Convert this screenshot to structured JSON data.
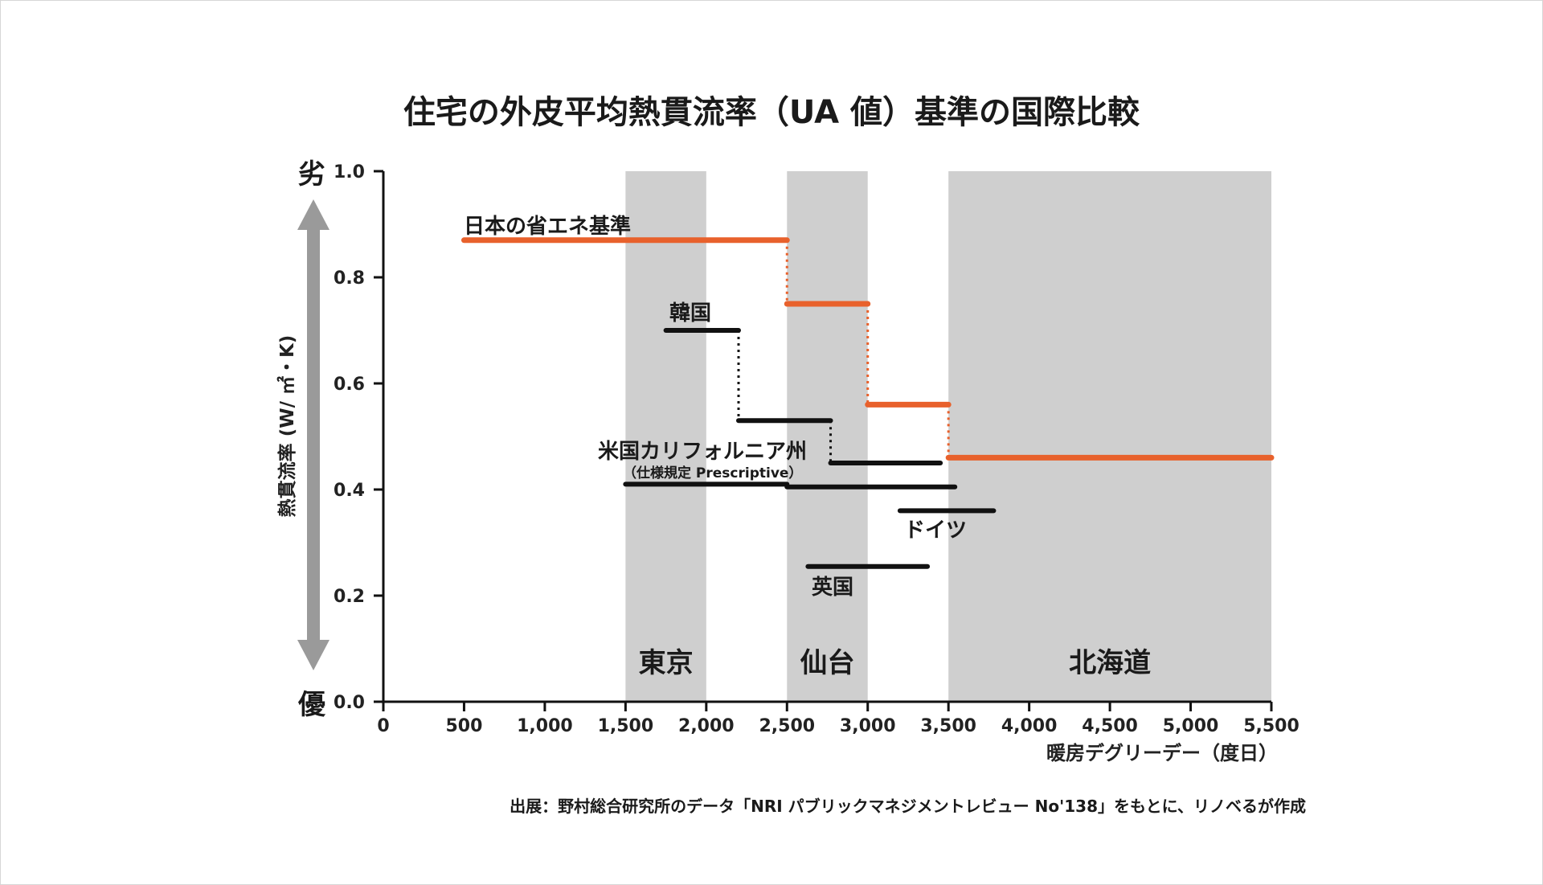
{
  "chart_data": {
    "type": "line",
    "title": "住宅の外皮平均熱貫流率（UA 値）基準の国際比較",
    "xlabel": "暖房デグリーデー（度日）",
    "ylabel": "熱貫流率 (W/ ㎡・K)",
    "xlim": [
      0,
      5500
    ],
    "ylim": [
      0,
      1.0
    ],
    "x_ticks": [
      "0",
      "500",
      "1,000",
      "1,500",
      "2,000",
      "2,500",
      "3,000",
      "3,500",
      "4,000",
      "4,500",
      "5,000",
      "5,500"
    ],
    "x_tick_values": [
      0,
      500,
      1000,
      1500,
      2000,
      2500,
      3000,
      3500,
      4000,
      4500,
      5000,
      5500
    ],
    "y_ticks": [
      "0.0",
      "0.2",
      "0.4",
      "0.6",
      "0.8",
      "1.0"
    ],
    "y_tick_values": [
      0,
      0.2,
      0.4,
      0.6,
      0.8,
      1.0
    ],
    "y_top_label": "劣",
    "y_bottom_label": "優",
    "regions": [
      {
        "label": "東京",
        "x": [
          1500,
          2000
        ]
      },
      {
        "label": "仙台",
        "x": [
          2500,
          3000
        ]
      },
      {
        "label": "北海道",
        "x": [
          3500,
          5500
        ]
      }
    ],
    "series": [
      {
        "name": "日本の省エネ基準",
        "color": "#e8612c",
        "segments": [
          {
            "x": [
              500,
              2500
            ],
            "y": 0.87
          },
          {
            "x": [
              2500,
              3000
            ],
            "y": 0.75
          },
          {
            "x": [
              3000,
              3500
            ],
            "y": 0.56
          },
          {
            "x": [
              3500,
              5500
            ],
            "y": 0.46
          }
        ]
      },
      {
        "name": "韓国",
        "color": "#111111",
        "segments": [
          {
            "x": [
              1750,
              2200
            ],
            "y": 0.7
          },
          {
            "x": [
              2200,
              2770
            ],
            "y": 0.53
          },
          {
            "x": [
              2770,
              3450
            ],
            "y": 0.45
          }
        ]
      },
      {
        "name": "米国カリフォルニア州",
        "sublabel": "（仕様規定 Prescriptive）",
        "color": "#111111",
        "segments": [
          {
            "x": [
              1500,
              2500
            ],
            "y": 0.41
          },
          {
            "x": [
              2500,
              3540
            ],
            "y": 0.405
          }
        ]
      },
      {
        "name": "ドイツ",
        "color": "#111111",
        "segments": [
          {
            "x": [
              3200,
              3780
            ],
            "y": 0.36
          }
        ]
      },
      {
        "name": "英国",
        "color": "#111111",
        "segments": [
          {
            "x": [
              2630,
              3370
            ],
            "y": 0.255
          }
        ]
      }
    ],
    "source": "出展：野村総合研究所のデータ「NRI パブリックマネジメントレビュー No'138」をもとに、リノベるが作成"
  }
}
